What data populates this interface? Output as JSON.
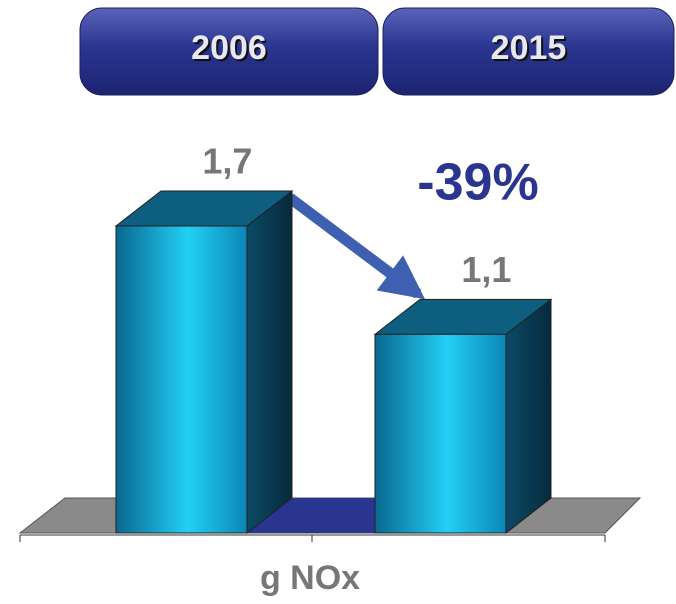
{
  "chart_data": {
    "type": "bar3d",
    "categories": [
      "2006",
      "2015"
    ],
    "values": [
      1.7,
      1.1
    ],
    "value_labels": [
      "1,7",
      "1,1"
    ],
    "annotation": "-39%",
    "x_label": "g NOx"
  }
}
